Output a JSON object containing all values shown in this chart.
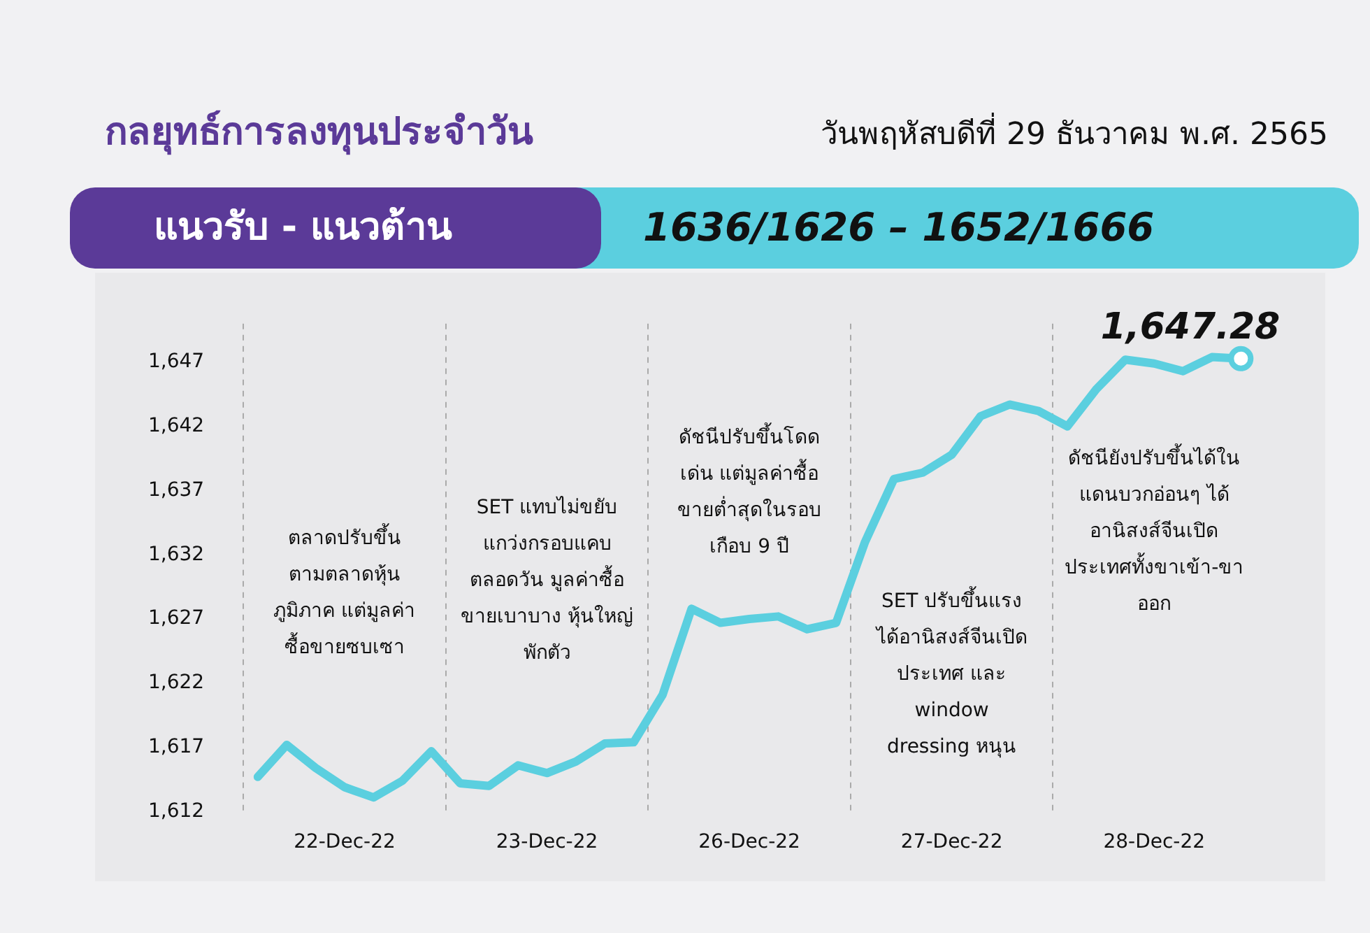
{
  "chart_data": {
    "type": "line",
    "title": "กลยุทธ์การลงทุนประจำวัน",
    "subtitle": "วันพฤหัสบดีที่ 29 ธันวาคม พ.ศ. 2565",
    "annotations": [
      "แนวรับ - แนวต้าน",
      "1636/1626 – 1652/1666",
      "ตลาดปรับขึ้น\nตามตลาดหุ้น\nภูมิภาค แต่มูลค่า\nซื้อขายซบเซา",
      "SET แทบไม่ขยับ\nแกว่งกรอบแคบ\nตลอดวัน มูลค่าซื้อ\nขายเบาบาง หุ้นใหญ่\nพักตัว",
      "ดัชนีปรับขึ้นโดด\nเด่น แต่มูลค่าซื้อ\nขายต่ำสุดในรอบ\nเกือบ 9 ปี",
      "SET ปรับขึ้นแรง\nได้อานิสงส์จีนเปิด\nประเทศ และ\nwindow\ndressing หนุน",
      "ดัชนียังปรับขึ้นได้ใน\nแดนบวกอ่อนๆ ได้\nอานิสงส์จีนเปิด\nประเทศทั้งขาเข้า-ขา\nออก"
    ],
    "categories": [
      null,
      null,
      null,
      "22-Dec-22",
      null,
      null,
      null,
      null,
      null,
      null,
      "23-Dec-22",
      null,
      null,
      null,
      null,
      null,
      null,
      "26-Dec-22",
      null,
      null,
      null,
      null,
      null,
      null,
      "27-Dec-22",
      null,
      null,
      null,
      null,
      null,
      null,
      "28-Dec-22",
      null,
      null,
      null
    ],
    "series": [
      {
        "color": "#5bcfdf",
        "values": [
          1614.7,
          1617.2,
          1615.4,
          1613.9,
          1613.1,
          1614.4,
          1616.7,
          1614.2,
          1614.0,
          1615.6,
          1615.0,
          1615.9,
          1617.3,
          1617.4,
          1621.1,
          1627.8,
          1626.7,
          1627.0,
          1627.2,
          1626.2,
          1626.7,
          1633.0,
          1637.9,
          1638.4,
          1639.8,
          1642.8,
          1643.7,
          1643.2,
          1642.0,
          1644.9,
          1647.2,
          1646.9,
          1646.3,
          1647.4,
          1647.28
        ],
        "value_labels": [
          null,
          null,
          null,
          null,
          null,
          null,
          null,
          null,
          null,
          null,
          null,
          null,
          null,
          null,
          null,
          null,
          null,
          null,
          null,
          null,
          null,
          null,
          null,
          null,
          null,
          null,
          null,
          null,
          null,
          null,
          null,
          null,
          null,
          null,
          "1,647.28"
        ]
      }
    ],
    "ylim": [
      1612,
      1650
    ],
    "yticks": [
      {
        "value": 1612,
        "label": "1,612"
      },
      {
        "value": 1617,
        "label": "1,617"
      },
      {
        "value": 1622,
        "label": "1,622"
      },
      {
        "value": 1627,
        "label": "1,627"
      },
      {
        "value": 1632,
        "label": "1,632"
      },
      {
        "value": 1637,
        "label": "1,637"
      },
      {
        "value": 1642,
        "label": "1,642"
      },
      {
        "value": 1647,
        "label": "1,647"
      }
    ],
    "grid": "x",
    "legend": false,
    "marker": "none",
    "line_style": "solid"
  }
}
